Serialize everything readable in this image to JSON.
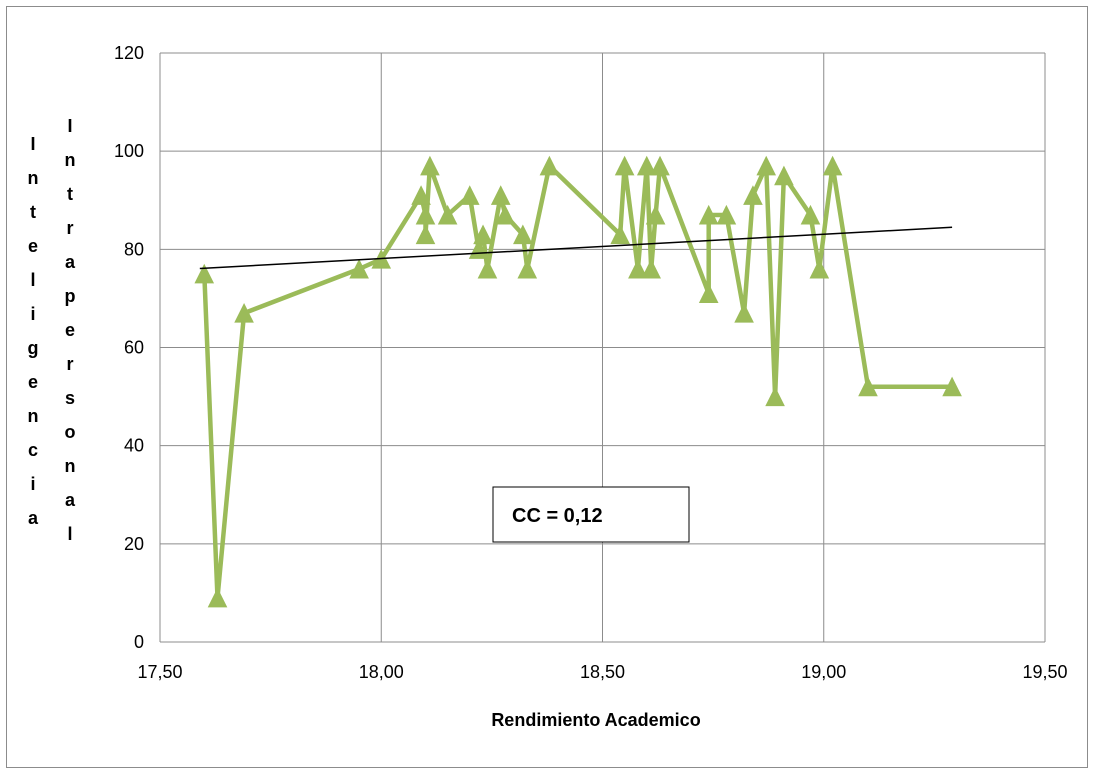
{
  "chart_data": {
    "type": "line",
    "xlabel": "Rendimiento Academico",
    "ylabel_left": "Inteligencia",
    "ylabel_right": "Intrapersonal",
    "xlim": [
      17.5,
      19.5
    ],
    "ylim": [
      0,
      120
    ],
    "x_ticks": [
      "17,50",
      "18,00",
      "18,50",
      "19,00",
      "19,50"
    ],
    "y_ticks": [
      "0",
      "20",
      "40",
      "60",
      "80",
      "100",
      "120"
    ],
    "grid": true,
    "marker": "triangle",
    "line_color": "#9bbb59",
    "trendline_color": "#000000",
    "annotation": "CC = 0,12",
    "series": [
      {
        "x": [
          17.6,
          17.63,
          17.69,
          17.95,
          18.0,
          18.09,
          18.1,
          18.1,
          18.11,
          18.15,
          18.2,
          18.22,
          18.23,
          18.24,
          18.27,
          18.28,
          18.32,
          18.33,
          18.38,
          18.54,
          18.55,
          18.58,
          18.6,
          18.61,
          18.62,
          18.63,
          18.74,
          18.74,
          18.78,
          18.82,
          18.84,
          18.87,
          18.89,
          18.91,
          18.97,
          18.99,
          19.02,
          19.1,
          19.29
        ],
        "y": [
          75,
          9,
          67,
          76,
          78,
          91,
          87,
          83,
          97,
          87,
          91,
          80,
          83,
          76,
          91,
          87,
          83,
          76,
          97,
          83,
          97,
          76,
          97,
          76,
          87,
          97,
          71,
          87,
          87,
          67,
          91,
          97,
          50,
          95,
          87,
          76,
          97,
          52,
          52
        ]
      }
    ],
    "trendline": {
      "x": [
        17.59,
        19.29
      ],
      "y": [
        76.1,
        84.5
      ]
    }
  }
}
